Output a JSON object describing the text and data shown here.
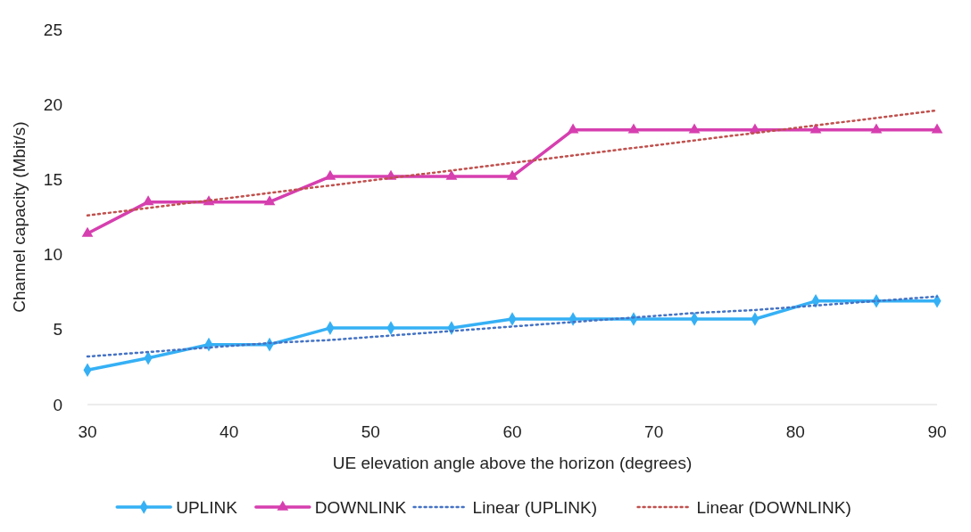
{
  "chart_data": {
    "type": "line",
    "xlabel": "UE elevation angle above the horizon (degrees)",
    "ylabel": "Channel capacity (Mbit/s)",
    "x": [
      30,
      34.29,
      38.57,
      42.86,
      47.14,
      51.43,
      55.71,
      60,
      64.29,
      68.57,
      72.86,
      77.14,
      81.43,
      85.71,
      90
    ],
    "xlim": [
      30,
      90
    ],
    "xticks": [
      30,
      40,
      50,
      60,
      70,
      80,
      90
    ],
    "ylim": [
      0,
      25
    ],
    "yticks": [
      0,
      5,
      10,
      15,
      20,
      25
    ],
    "legend": "bottom",
    "series": [
      {
        "name": "UPLINK",
        "color": "#35b0f5",
        "marker": "diamond",
        "line_style": "solid",
        "values": [
          2.3,
          3.1,
          4.0,
          4.0,
          5.1,
          5.1,
          5.1,
          5.7,
          5.7,
          5.7,
          5.7,
          5.7,
          6.9,
          6.9,
          6.9
        ]
      },
      {
        "name": "DOWNLINK",
        "color": "#d63faf",
        "marker": "triangle",
        "line_style": "solid",
        "values": [
          11.4,
          13.5,
          13.5,
          13.5,
          15.2,
          15.2,
          15.2,
          15.2,
          18.3,
          18.3,
          18.3,
          18.3,
          18.3,
          18.3,
          18.3
        ]
      },
      {
        "name": "Linear (UPLINK)",
        "color": "#4472c4",
        "marker": "none",
        "line_style": "dotted",
        "values": [
          3.2,
          3.5,
          3.8,
          4.1,
          4.3,
          4.6,
          4.9,
          5.2,
          5.5,
          5.8,
          6.1,
          6.3,
          6.6,
          6.9,
          7.2
        ]
      },
      {
        "name": "Linear (DOWNLINK)",
        "color": "#c0504d",
        "marker": "none",
        "line_style": "dotted",
        "values": [
          12.6,
          13.1,
          13.6,
          14.1,
          14.6,
          15.1,
          15.6,
          16.1,
          16.6,
          17.1,
          17.6,
          18.1,
          18.6,
          19.1,
          19.6
        ]
      }
    ]
  }
}
